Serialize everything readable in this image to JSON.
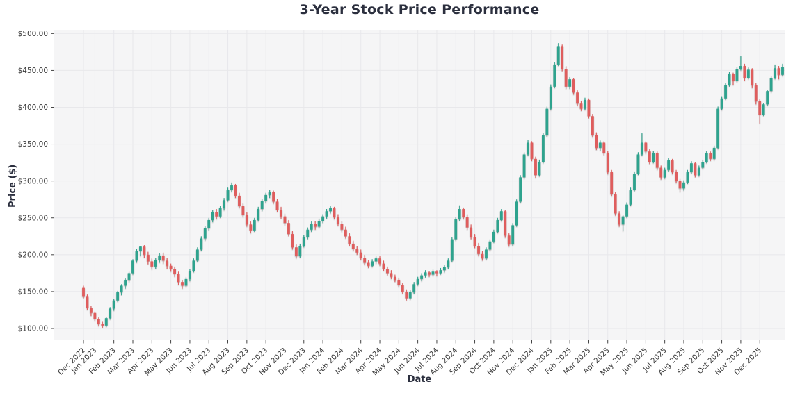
{
  "chart_data": {
    "type": "candlestick",
    "title": "3-Year Stock Price Performance",
    "xlabel": "Date",
    "ylabel": "Price ($)",
    "grid": true,
    "legend": "none",
    "ylim": [
      84,
      505
    ],
    "up_color": "#2ea38e",
    "down_color": "#df5d5d",
    "y_ticks": [
      {
        "value": 100,
        "label": "$100.00"
      },
      {
        "value": 150,
        "label": "$150.00"
      },
      {
        "value": 200,
        "label": "$200.00"
      },
      {
        "value": 250,
        "label": "$250.00"
      },
      {
        "value": 300,
        "label": "$300.00"
      },
      {
        "value": 350,
        "label": "$350.00"
      },
      {
        "value": 400,
        "label": "$400.00"
      },
      {
        "value": 450,
        "label": "$450.00"
      },
      {
        "value": 500,
        "label": "$500.00"
      }
    ],
    "x_ticks": [
      {
        "i": 0,
        "label": "Dec 2022"
      },
      {
        "i": 3,
        "label": "Jan 2023"
      },
      {
        "i": 8,
        "label": "Feb 2023"
      },
      {
        "i": 13,
        "label": "Mar 2023"
      },
      {
        "i": 18,
        "label": "Apr 2023"
      },
      {
        "i": 23,
        "label": "May 2023"
      },
      {
        "i": 28,
        "label": "Jun 2023"
      },
      {
        "i": 33,
        "label": "Jul 2023"
      },
      {
        "i": 38,
        "label": "Aug 2023"
      },
      {
        "i": 43,
        "label": "Sep 2023"
      },
      {
        "i": 48,
        "label": "Oct 2023"
      },
      {
        "i": 53,
        "label": "Nov 2023"
      },
      {
        "i": 58,
        "label": "Dec 2023"
      },
      {
        "i": 63,
        "label": "Jan 2024"
      },
      {
        "i": 68,
        "label": "Feb 2024"
      },
      {
        "i": 73,
        "label": "Mar 2024"
      },
      {
        "i": 78,
        "label": "Apr 2024"
      },
      {
        "i": 83,
        "label": "May 2024"
      },
      {
        "i": 88,
        "label": "Jun 2024"
      },
      {
        "i": 93,
        "label": "Jul 2024"
      },
      {
        "i": 98,
        "label": "Aug 2024"
      },
      {
        "i": 103,
        "label": "Sep 2024"
      },
      {
        "i": 108,
        "label": "Oct 2024"
      },
      {
        "i": 113,
        "label": "Nov 2024"
      },
      {
        "i": 118,
        "label": "Dec 2024"
      },
      {
        "i": 123,
        "label": "Jan 2025"
      },
      {
        "i": 128,
        "label": "Feb 2025"
      },
      {
        "i": 133,
        "label": "Mar 2025"
      },
      {
        "i": 138,
        "label": "Apr 2025"
      },
      {
        "i": 143,
        "label": "May 2025"
      },
      {
        "i": 148,
        "label": "Jun 2025"
      },
      {
        "i": 153,
        "label": "Jul 2025"
      },
      {
        "i": 158,
        "label": "Aug 2025"
      },
      {
        "i": 163,
        "label": "Sep 2025"
      },
      {
        "i": 168,
        "label": "Oct 2025"
      },
      {
        "i": 173,
        "label": "Nov 2025"
      },
      {
        "i": 178,
        "label": "Dec 2025"
      }
    ],
    "candles": [
      [
        155,
        158,
        141,
        143
      ],
      [
        143,
        146,
        125,
        128
      ],
      [
        128,
        131,
        117,
        121
      ],
      [
        121,
        123,
        110,
        113
      ],
      [
        113,
        115,
        103,
        106
      ],
      [
        106,
        109,
        101,
        104
      ],
      [
        104,
        116,
        102,
        114
      ],
      [
        114,
        129,
        112,
        127
      ],
      [
        127,
        140,
        124,
        138
      ],
      [
        138,
        151,
        136,
        149
      ],
      [
        149,
        160,
        145,
        158
      ],
      [
        158,
        168,
        154,
        166
      ],
      [
        166,
        177,
        163,
        175
      ],
      [
        175,
        194,
        173,
        192
      ],
      [
        192,
        208,
        189,
        205
      ],
      [
        205,
        212,
        198,
        211
      ],
      [
        211,
        213,
        196,
        200
      ],
      [
        200,
        204,
        187,
        191
      ],
      [
        191,
        195,
        180,
        184
      ],
      [
        184,
        196,
        181,
        193
      ],
      [
        193,
        202,
        189,
        199
      ],
      [
        199,
        203,
        188,
        192
      ],
      [
        192,
        196,
        181,
        185
      ],
      [
        185,
        188,
        177,
        181
      ],
      [
        181,
        184,
        170,
        174
      ],
      [
        174,
        177,
        159,
        163
      ],
      [
        163,
        166,
        154,
        158
      ],
      [
        158,
        170,
        156,
        167
      ],
      [
        167,
        181,
        164,
        178
      ],
      [
        178,
        195,
        176,
        192
      ],
      [
        192,
        210,
        190,
        207
      ],
      [
        207,
        225,
        205,
        222
      ],
      [
        222,
        239,
        219,
        236
      ],
      [
        236,
        250,
        233,
        247
      ],
      [
        247,
        261,
        244,
        258
      ],
      [
        258,
        262,
        248,
        252
      ],
      [
        252,
        266,
        250,
        263
      ],
      [
        263,
        277,
        260,
        274
      ],
      [
        274,
        291,
        272,
        288
      ],
      [
        288,
        298,
        285,
        294
      ],
      [
        294,
        296,
        277,
        280
      ],
      [
        280,
        284,
        263,
        266
      ],
      [
        266,
        270,
        251,
        254
      ],
      [
        254,
        258,
        238,
        241
      ],
      [
        241,
        245,
        229,
        233
      ],
      [
        233,
        250,
        231,
        247
      ],
      [
        247,
        265,
        245,
        262
      ],
      [
        262,
        276,
        259,
        273
      ],
      [
        273,
        284,
        270,
        281
      ],
      [
        281,
        288,
        277,
        285
      ],
      [
        285,
        287,
        269,
        272
      ],
      [
        272,
        276,
        258,
        261
      ],
      [
        261,
        265,
        249,
        252
      ],
      [
        252,
        256,
        240,
        243
      ],
      [
        243,
        247,
        225,
        228
      ],
      [
        228,
        232,
        207,
        210
      ],
      [
        210,
        214,
        195,
        198
      ],
      [
        198,
        215,
        196,
        212
      ],
      [
        212,
        227,
        210,
        224
      ],
      [
        224,
        237,
        221,
        234
      ],
      [
        234,
        245,
        231,
        242
      ],
      [
        242,
        246,
        234,
        238
      ],
      [
        238,
        249,
        236,
        246
      ],
      [
        246,
        255,
        243,
        252
      ],
      [
        252,
        262,
        249,
        259
      ],
      [
        259,
        266,
        256,
        263
      ],
      [
        263,
        265,
        248,
        251
      ],
      [
        251,
        255,
        239,
        242
      ],
      [
        242,
        246,
        231,
        234
      ],
      [
        234,
        238,
        222,
        225
      ],
      [
        225,
        229,
        212,
        215
      ],
      [
        215,
        219,
        205,
        208
      ],
      [
        208,
        212,
        200,
        203
      ],
      [
        203,
        207,
        193,
        196
      ],
      [
        196,
        200,
        186,
        189
      ],
      [
        189,
        193,
        182,
        185
      ],
      [
        185,
        194,
        183,
        191
      ],
      [
        191,
        198,
        188,
        195
      ],
      [
        195,
        198,
        185,
        188
      ],
      [
        188,
        192,
        178,
        181
      ],
      [
        181,
        184,
        172,
        175
      ],
      [
        175,
        179,
        167,
        170
      ],
      [
        170,
        173,
        163,
        166
      ],
      [
        166,
        169,
        156,
        159
      ],
      [
        159,
        162,
        147,
        150
      ],
      [
        150,
        153,
        138,
        141
      ],
      [
        141,
        152,
        139,
        149
      ],
      [
        149,
        163,
        147,
        160
      ],
      [
        160,
        170,
        158,
        167
      ],
      [
        167,
        175,
        164,
        172
      ],
      [
        172,
        179,
        169,
        176
      ],
      [
        176,
        178,
        170,
        173
      ],
      [
        173,
        180,
        171,
        177
      ],
      [
        177,
        179,
        171,
        175
      ],
      [
        175,
        182,
        173,
        179
      ],
      [
        179,
        186,
        176,
        183
      ],
      [
        183,
        195,
        181,
        192
      ],
      [
        192,
        224,
        190,
        221
      ],
      [
        221,
        251,
        219,
        248
      ],
      [
        248,
        267,
        246,
        262
      ],
      [
        262,
        264,
        248,
        251
      ],
      [
        251,
        255,
        234,
        237
      ],
      [
        237,
        241,
        221,
        224
      ],
      [
        224,
        228,
        209,
        212
      ],
      [
        212,
        216,
        198,
        201
      ],
      [
        201,
        205,
        192,
        195
      ],
      [
        195,
        210,
        193,
        207
      ],
      [
        207,
        221,
        205,
        218
      ],
      [
        218,
        234,
        216,
        231
      ],
      [
        231,
        250,
        229,
        247
      ],
      [
        247,
        262,
        245,
        259
      ],
      [
        259,
        261,
        223,
        226
      ],
      [
        226,
        229,
        211,
        214
      ],
      [
        214,
        243,
        212,
        240
      ],
      [
        240,
        275,
        238,
        272
      ],
      [
        272,
        308,
        270,
        305
      ],
      [
        305,
        339,
        303,
        336
      ],
      [
        336,
        356,
        334,
        352
      ],
      [
        352,
        354,
        327,
        330
      ],
      [
        330,
        333,
        304,
        308
      ],
      [
        308,
        329,
        306,
        326
      ],
      [
        326,
        365,
        324,
        362
      ],
      [
        362,
        401,
        360,
        398
      ],
      [
        398,
        431,
        396,
        428
      ],
      [
        428,
        461,
        426,
        458
      ],
      [
        458,
        487,
        456,
        483
      ],
      [
        483,
        485,
        449,
        452
      ],
      [
        452,
        456,
        425,
        428
      ],
      [
        428,
        441,
        425,
        438
      ],
      [
        438,
        440,
        417,
        420
      ],
      [
        420,
        423,
        402,
        405
      ],
      [
        405,
        409,
        395,
        398
      ],
      [
        398,
        413,
        396,
        410
      ],
      [
        410,
        412,
        385,
        388
      ],
      [
        388,
        391,
        359,
        362
      ],
      [
        362,
        366,
        342,
        345
      ],
      [
        345,
        355,
        341,
        352
      ],
      [
        352,
        354,
        335,
        338
      ],
      [
        338,
        341,
        309,
        312
      ],
      [
        312,
        315,
        279,
        282
      ],
      [
        282,
        285,
        253,
        256
      ],
      [
        256,
        259,
        238,
        241
      ],
      [
        241,
        254,
        232,
        252
      ],
      [
        252,
        271,
        250,
        268
      ],
      [
        268,
        291,
        266,
        288
      ],
      [
        288,
        313,
        286,
        310
      ],
      [
        310,
        339,
        308,
        336
      ],
      [
        336,
        365,
        334,
        352
      ],
      [
        352,
        354,
        337,
        340
      ],
      [
        340,
        343,
        323,
        326
      ],
      [
        326,
        341,
        324,
        338
      ],
      [
        338,
        340,
        315,
        318
      ],
      [
        318,
        321,
        302,
        305
      ],
      [
        305,
        318,
        303,
        315
      ],
      [
        315,
        331,
        313,
        328
      ],
      [
        328,
        330,
        309,
        312
      ],
      [
        312,
        315,
        297,
        300
      ],
      [
        300,
        303,
        285,
        290
      ],
      [
        290,
        301,
        287,
        298
      ],
      [
        298,
        315,
        296,
        312
      ],
      [
        312,
        327,
        310,
        324
      ],
      [
        324,
        326,
        305,
        308
      ],
      [
        308,
        321,
        306,
        318
      ],
      [
        318,
        329,
        316,
        326
      ],
      [
        326,
        341,
        324,
        338
      ],
      [
        338,
        340,
        327,
        330
      ],
      [
        330,
        348,
        328,
        345
      ],
      [
        345,
        401,
        343,
        398
      ],
      [
        398,
        415,
        396,
        412
      ],
      [
        412,
        433,
        410,
        430
      ],
      [
        430,
        448,
        428,
        445
      ],
      [
        445,
        447,
        430,
        436
      ],
      [
        436,
        455,
        434,
        452
      ],
      [
        452,
        470,
        450,
        456
      ],
      [
        456,
        459,
        436,
        440
      ],
      [
        440,
        454,
        438,
        451
      ],
      [
        451,
        453,
        426,
        430
      ],
      [
        430,
        433,
        404,
        408
      ],
      [
        408,
        411,
        378,
        390
      ],
      [
        390,
        406,
        388,
        404
      ],
      [
        404,
        424,
        402,
        422
      ],
      [
        422,
        442,
        420,
        440
      ],
      [
        440,
        458,
        438,
        453
      ],
      [
        453,
        456,
        438,
        444
      ],
      [
        444,
        459,
        442,
        455
      ]
    ]
  },
  "style": {
    "plot_bg": "#f5f5f6",
    "grid_color": "#e8e8eb",
    "tick_color": "#303030",
    "tick_label_color": "#3a3a3a",
    "heading_color": "#2b2f3e"
  }
}
